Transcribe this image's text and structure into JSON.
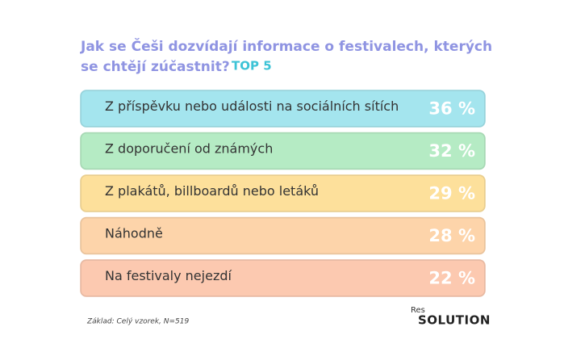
{
  "chart_data": {
    "type": "bar",
    "title": [
      "Jak se Češi dozvídají informace o festivalech, kterých",
      "se chtějí zúčastnit?"
    ],
    "subtitle": "TOP 5",
    "categories": [
      "Z příspěvku nebo události na sociálních sítích",
      "Z doporučení od známých",
      "Z plakátů, billboardů nebo letáků",
      "Náhodně",
      "Na festivaly nejezdí"
    ],
    "values": [
      36,
      32,
      29,
      28,
      22
    ],
    "value_labels": [
      "36 %",
      "32 %",
      "29 %",
      "28 %",
      "22 %"
    ],
    "colors": [
      "#a4e5ee",
      "#b5ebc4",
      "#fde09b",
      "#fdd4aa",
      "#fcc9b0"
    ],
    "note": "Základ: Celý vzorek, N=519",
    "logo": [
      "Res",
      "SOLUTION"
    ]
  }
}
